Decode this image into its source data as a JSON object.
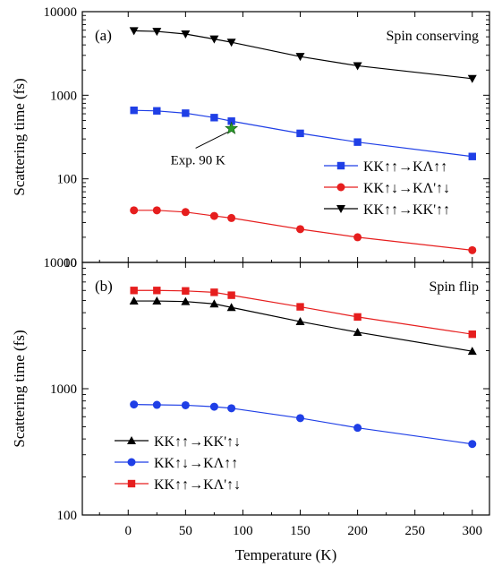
{
  "chart_data": [
    {
      "panel": "(a)",
      "title": "Spin conserving",
      "type": "line",
      "xlabel": "Temperature (K)",
      "ylabel": "Scattering time (fs)",
      "xlim": [
        -40,
        315
      ],
      "ylim": [
        10,
        10000
      ],
      "yscale": "log",
      "x_ticks": [
        0,
        50,
        100,
        150,
        200,
        250,
        300
      ],
      "y_ticks": [
        10,
        100,
        1000,
        10000
      ],
      "y_tick_labels": [
        "10",
        "100",
        "1000",
        "10000"
      ],
      "legend_position": "bottom-right",
      "x": [
        5,
        25,
        50,
        75,
        90,
        150,
        200,
        300
      ],
      "series": [
        {
          "name": "KK↑↑→KΛ↑↑",
          "color": "#1f3fe6",
          "marker": "square",
          "values": [
            660,
            650,
            610,
            540,
            490,
            350,
            275,
            185
          ]
        },
        {
          "name": "KK↑↓→KΛ'↑↓",
          "color": "#e61e1e",
          "marker": "circle",
          "values": [
            42,
            42,
            40,
            36,
            34,
            25,
            20,
            14
          ]
        },
        {
          "name": "KK↑↑→KK'↑↑",
          "color": "#000000",
          "marker": "triangle-down",
          "values": [
            5900,
            5800,
            5400,
            4700,
            4300,
            2900,
            2250,
            1580
          ]
        }
      ],
      "annotations": [
        {
          "text": "Exp. 90 K",
          "x": 90,
          "y": 400,
          "marker": "star",
          "color": "#2a9a2a"
        }
      ]
    },
    {
      "panel": "(b)",
      "title": "Spin flip",
      "type": "line",
      "xlabel": "Temperature (K)",
      "ylabel": "Scattering time (fs)",
      "xlim": [
        -40,
        315
      ],
      "ylim": [
        100,
        10000
      ],
      "yscale": "log",
      "x_ticks": [
        0,
        50,
        100,
        150,
        200,
        250,
        300
      ],
      "x_tick_labels": [
        "0",
        "50",
        "100",
        "150",
        "200",
        "250",
        "300"
      ],
      "y_ticks": [
        100,
        1000,
        10000
      ],
      "y_tick_labels": [
        "100",
        "1000",
        "10000"
      ],
      "legend_position": "bottom-left",
      "x": [
        5,
        25,
        50,
        75,
        90,
        150,
        200,
        300
      ],
      "series": [
        {
          "name": "KK↑↑→KK'↑↓",
          "color": "#000000",
          "marker": "triangle-up",
          "values": [
            4950,
            4950,
            4900,
            4700,
            4400,
            3400,
            2800,
            1980
          ]
        },
        {
          "name": "KK↑↓→KΛ↑↑",
          "color": "#1f3fe6",
          "marker": "circle",
          "values": [
            750,
            745,
            740,
            720,
            700,
            585,
            490,
            365
          ]
        },
        {
          "name": "KK↑↑→KΛ'↑↓",
          "color": "#e61e1e",
          "marker": "square",
          "values": [
            6000,
            6000,
            5950,
            5800,
            5500,
            4450,
            3700,
            2700
          ]
        }
      ]
    }
  ]
}
